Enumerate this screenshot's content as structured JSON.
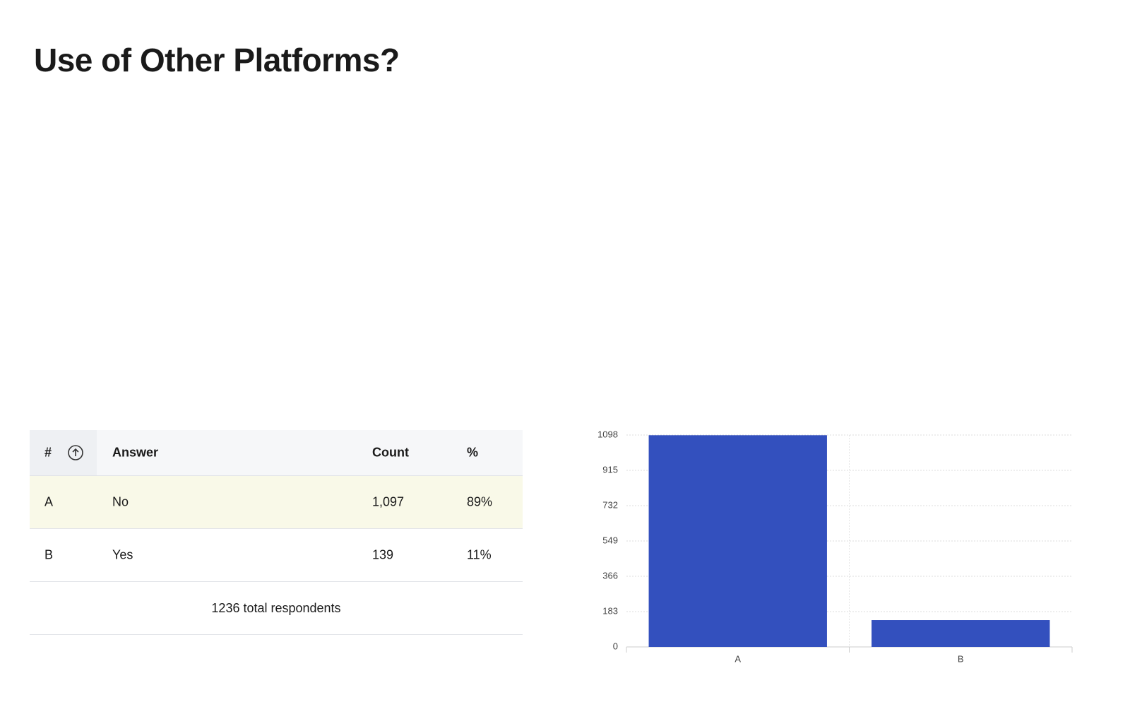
{
  "title": "Use of Other Platforms?",
  "table": {
    "header": [
      "#",
      "Answer",
      "Count",
      "%"
    ],
    "rows": [
      [
        "A",
        "No",
        "1,097",
        "89%"
      ],
      [
        "B",
        "Yes",
        "139",
        "11%"
      ]
    ],
    "footer": "1236 total respondents"
  },
  "chart_data": {
    "type": "bar",
    "categories": [
      "A",
      "B"
    ],
    "values": [
      1097,
      139
    ],
    "color": "#3350be",
    "ylim": [
      0,
      1098
    ],
    "yticks": [
      0,
      183,
      366,
      549,
      732,
      915,
      1098
    ],
    "grid": true
  }
}
